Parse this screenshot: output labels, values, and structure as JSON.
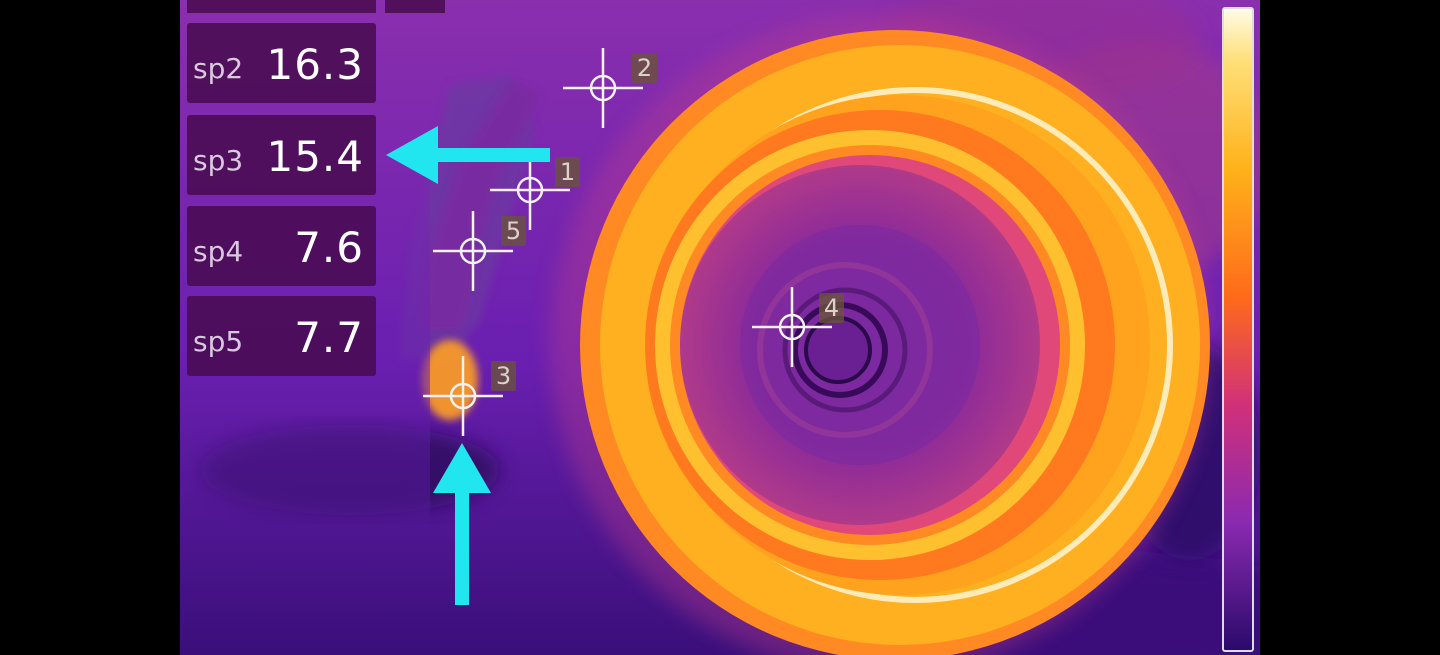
{
  "spot_readings": [
    {
      "label": "sp2",
      "value": "16.3"
    },
    {
      "label": "sp3",
      "value": "15.4"
    },
    {
      "label": "sp4",
      "value": "7.6"
    },
    {
      "label": "sp5",
      "value": "7.7"
    }
  ],
  "markers": [
    "1",
    "2",
    "3",
    "4",
    "5"
  ],
  "colors": {
    "arrow": "#22e6ef",
    "panel": "#460a4b",
    "ring_hot": "#ffb21a",
    "ring_warm": "#ff7a1a",
    "background": "#6a1fb0"
  }
}
